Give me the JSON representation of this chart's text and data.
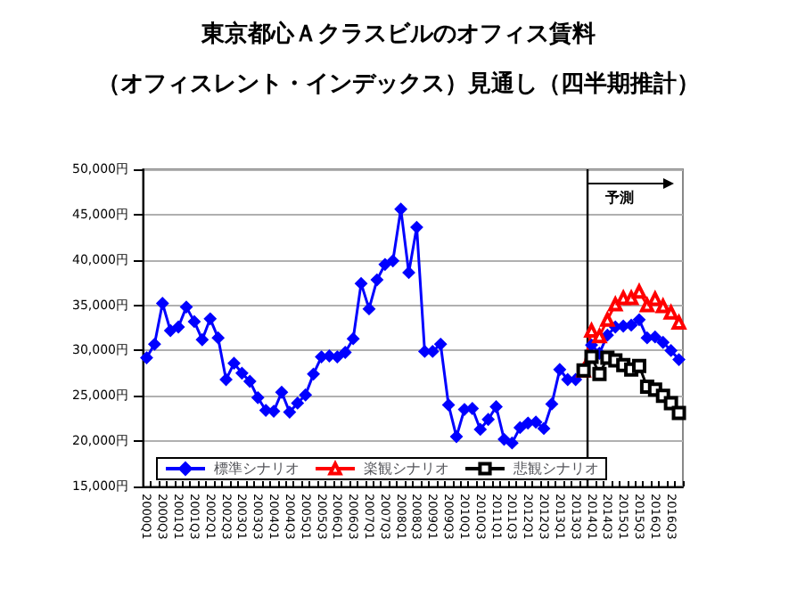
{
  "chart_data": {
    "type": "line",
    "title": "東京都心Ａクラスビルのオフィス賃料",
    "subtitle": "（オフィスレント・インデックス）見通し（四半期推計）",
    "categories": [
      "2000Q1",
      null,
      "2000Q3",
      null,
      "2001Q1",
      null,
      "2001Q3",
      null,
      "2002Q1",
      null,
      "2002Q3",
      null,
      "2003Q1",
      null,
      "2003Q3",
      null,
      "2004Q1",
      null,
      "2004Q3",
      null,
      "2005Q1",
      null,
      "2005Q3",
      null,
      "2006Q1",
      null,
      "2006Q3",
      null,
      "2007Q1",
      null,
      "2007Q3",
      null,
      "2008Q1",
      null,
      "2008Q3",
      null,
      "2009Q1",
      null,
      "2009Q3",
      null,
      "2010Q1",
      null,
      "2010Q3",
      null,
      "2011Q1",
      null,
      "2011Q3",
      null,
      "2012Q1",
      null,
      "2012Q3",
      null,
      "2013Q1",
      null,
      "2013Q3",
      null,
      "2014Q1",
      null,
      "2014Q3",
      null,
      "2015Q1",
      null,
      "2015Q3",
      null,
      "2016Q1",
      null,
      "2016Q3",
      null
    ],
    "series": [
      {
        "name": "標準シナリオ",
        "color": "#0000ff",
        "marker": "diamond",
        "values": [
          29200,
          30700,
          35200,
          32200,
          32600,
          34800,
          33200,
          31200,
          33500,
          31400,
          26800,
          28600,
          27500,
          26600,
          24800,
          23400,
          23300,
          25400,
          23200,
          24200,
          25100,
          27400,
          29300,
          29400,
          29300,
          29800,
          31300,
          37400,
          34600,
          37800,
          39500,
          39900,
          45600,
          38600,
          43600,
          29900,
          29900,
          30700,
          24000,
          20500,
          23500,
          23600,
          21300,
          22400,
          23800,
          20200,
          19800,
          21500,
          22000,
          22100,
          21400,
          24100,
          27900,
          26800,
          26800,
          27800,
          30600,
          29700,
          31700,
          32600,
          32700,
          32800,
          33400,
          31400,
          31500,
          30900,
          30000,
          29000
        ]
      },
      {
        "name": "楽観シナリオ",
        "color": "#ff0000",
        "marker": "triangle",
        "values": [
          null,
          null,
          null,
          null,
          null,
          null,
          null,
          null,
          null,
          null,
          null,
          null,
          null,
          null,
          null,
          null,
          null,
          null,
          null,
          null,
          null,
          null,
          null,
          null,
          null,
          null,
          null,
          null,
          null,
          null,
          null,
          null,
          null,
          null,
          null,
          null,
          null,
          null,
          null,
          null,
          null,
          null,
          null,
          null,
          null,
          null,
          null,
          null,
          null,
          null,
          null,
          null,
          null,
          null,
          null,
          27800,
          32200,
          31600,
          33400,
          35100,
          35800,
          35800,
          36500,
          35000,
          35700,
          34900,
          34200,
          33100
        ]
      },
      {
        "name": "悲観シナリオ",
        "color": "#000000",
        "marker": "square",
        "values": [
          null,
          null,
          null,
          null,
          null,
          null,
          null,
          null,
          null,
          null,
          null,
          null,
          null,
          null,
          null,
          null,
          null,
          null,
          null,
          null,
          null,
          null,
          null,
          null,
          null,
          null,
          null,
          null,
          null,
          null,
          null,
          null,
          null,
          null,
          null,
          null,
          null,
          null,
          null,
          null,
          null,
          null,
          null,
          null,
          null,
          null,
          null,
          null,
          null,
          null,
          null,
          null,
          null,
          null,
          null,
          27800,
          29300,
          27400,
          29200,
          28900,
          28400,
          27900,
          28300,
          26000,
          25700,
          25000,
          24200,
          23100
        ]
      }
    ],
    "ylim": [
      15000,
      50000
    ],
    "yticks": [
      {
        "value": 15000,
        "label": "15,000円"
      },
      {
        "value": 20000,
        "label": "20,000円"
      },
      {
        "value": 25000,
        "label": "25,000円"
      },
      {
        "value": 30000,
        "label": "30,000円"
      },
      {
        "value": 35000,
        "label": "35,000円"
      },
      {
        "value": 40000,
        "label": "40,000円"
      },
      {
        "value": 45000,
        "label": "45,000円"
      },
      {
        "value": 50000,
        "label": "50,000円"
      }
    ],
    "grid": "y",
    "legend": "bottom left",
    "ref_lines": [
      {
        "axis": "x",
        "value": "2014Q1",
        "label": "予測",
        "color": "#000000"
      }
    ]
  }
}
